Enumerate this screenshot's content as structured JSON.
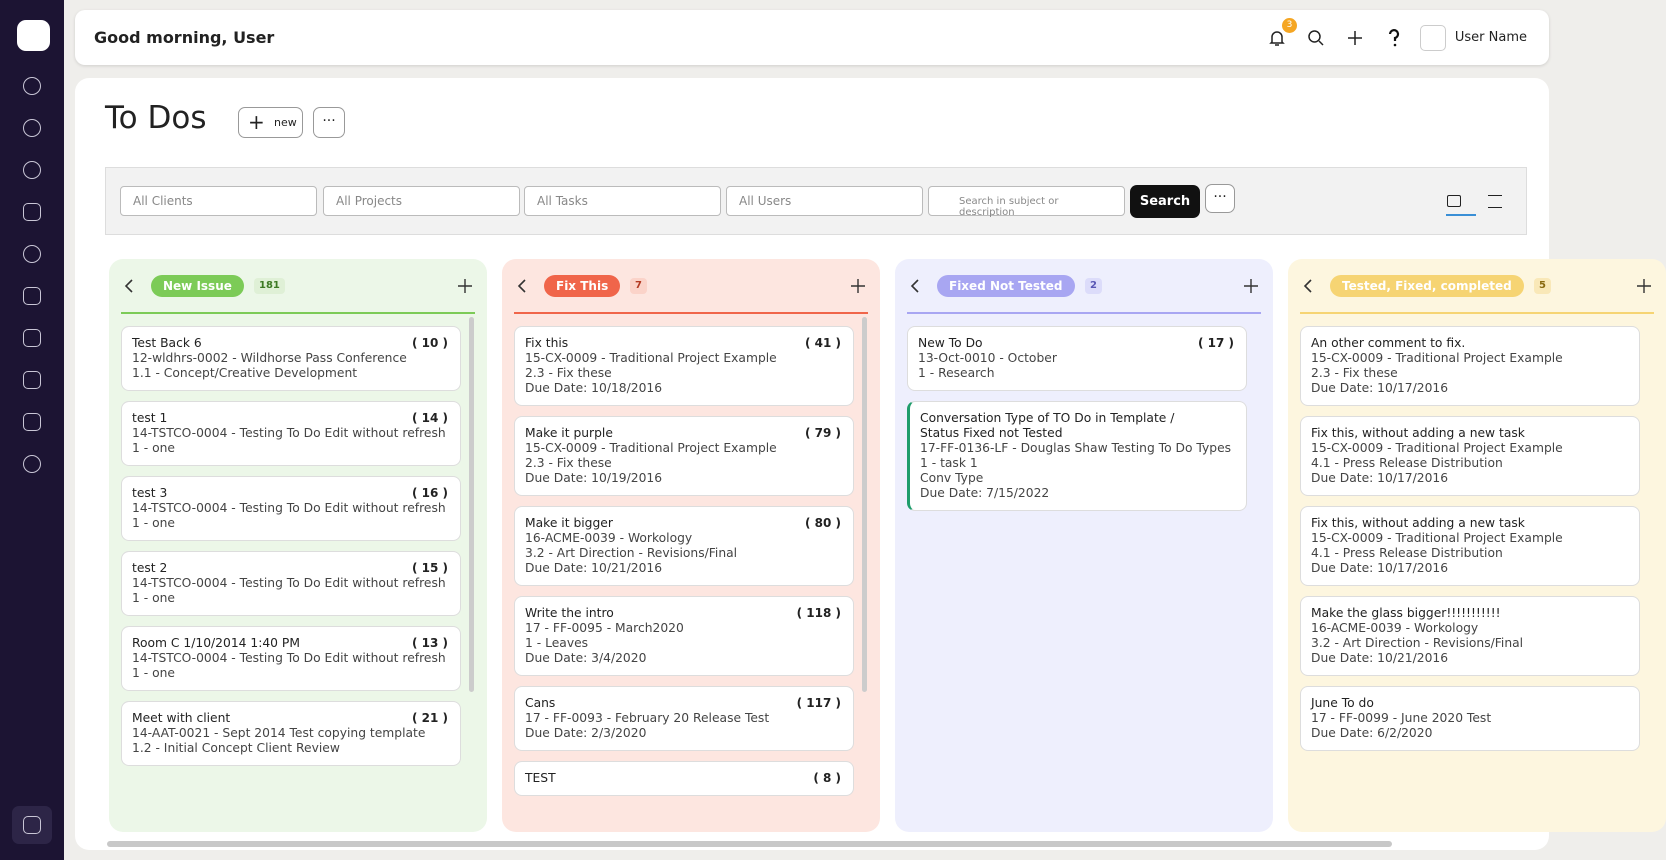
{
  "header": {
    "greeting": "Good morning, User",
    "notifications": "3",
    "user_name": "User Name"
  },
  "page": {
    "title": "To Dos",
    "new_button": "new"
  },
  "filters": {
    "clients": "All Clients",
    "projects": "All Projects",
    "tasks": "All Tasks",
    "users": "All Users",
    "search_placeholder": "Search in subject or description",
    "search_button": "Search"
  },
  "columns": [
    {
      "name": "New Issue",
      "count": "181",
      "cards": [
        {
          "title": "Test Back 6",
          "id": "( 10 )",
          "lines": [
            "12-wldhrs-0002 - Wildhorse Pass Conference",
            "1.1 - Concept/Creative Development"
          ]
        },
        {
          "title": "test 1",
          "id": "( 14 )",
          "lines": [
            "14-TSTCO-0004 - Testing To Do Edit without refresh",
            "1 - one"
          ]
        },
        {
          "title": "test 3",
          "id": "( 16 )",
          "lines": [
            "14-TSTCO-0004 - Testing To Do Edit without refresh",
            "1 - one"
          ]
        },
        {
          "title": "test 2",
          "id": "( 15 )",
          "lines": [
            "14-TSTCO-0004 - Testing To Do Edit without refresh",
            "1 - one"
          ]
        },
        {
          "title": "Room C 1/10/2014 1:40 PM",
          "id": "( 13 )",
          "lines": [
            "14-TSTCO-0004 - Testing To Do Edit without refresh",
            "1 - one"
          ]
        },
        {
          "title": "Meet with client",
          "id": "( 21 )",
          "lines": [
            "14-AAT-0021 - Sept 2014 Test copying template",
            "1.2 - Initial Concept Client Review"
          ]
        }
      ]
    },
    {
      "name": "Fix This",
      "count": "7",
      "cards": [
        {
          "title": "Fix this",
          "id": "( 41 )",
          "lines": [
            "15-CX-0009 - Traditional Project Example",
            "2.3 - Fix these",
            "Due Date: 10/18/2016"
          ]
        },
        {
          "title": "Make it purple",
          "id": "( 79 )",
          "lines": [
            "15-CX-0009 - Traditional Project Example",
            "2.3 - Fix these",
            "Due Date: 10/19/2016"
          ]
        },
        {
          "title": "Make it bigger",
          "id": "( 80 )",
          "lines": [
            "16-ACME-0039 - Workology",
            "3.2 - Art Direction - Revisions/Final",
            "Due Date: 10/21/2016"
          ]
        },
        {
          "title": "Write the intro",
          "id": "( 118 )",
          "lines": [
            "17 - FF-0095 - March2020",
            "1 - Leaves",
            "Due Date: 3/4/2020"
          ]
        },
        {
          "title": "Cans",
          "id": "( 117 )",
          "lines": [
            "17 - FF-0093 - February 20 Release Test",
            "Due Date: 2/3/2020"
          ]
        },
        {
          "title": "TEST",
          "id": "( 8 )",
          "lines": []
        }
      ]
    },
    {
      "name": "Fixed Not Tested",
      "count": "2",
      "cards": [
        {
          "title": "New To Do",
          "id": "( 17 )",
          "lines": [
            "13-Oct-0010 - October",
            "1 - Research"
          ]
        },
        {
          "title": "Conversation Type of TO Do in Template / Status Fixed not Tested",
          "id": "",
          "lines": [
            "17-FF-0136-LF - Douglas Shaw Testing To Do Types",
            "1 - task 1",
            "Conv Type",
            "Due Date: 7/15/2022"
          ]
        }
      ]
    },
    {
      "name": "Tested, Fixed, completed",
      "count": "5",
      "cards": [
        {
          "title": "An other comment to fix.",
          "id": "",
          "lines": [
            "15-CX-0009 - Traditional Project Example",
            "2.3 - Fix these",
            "Due Date: 10/17/2016"
          ]
        },
        {
          "title": "Fix this, without adding a new task",
          "id": "",
          "lines": [
            "15-CX-0009 - Traditional Project Example",
            "4.1 - Press Release Distribution",
            "Due Date: 10/17/2016"
          ]
        },
        {
          "title": "Fix this, without adding a new task",
          "id": "",
          "lines": [
            "15-CX-0009 - Traditional Project Example",
            "4.1 - Press Release Distribution",
            "Due Date: 10/17/2016"
          ]
        },
        {
          "title": "Make the glass bigger!!!!!!!!!!!",
          "id": "",
          "lines": [
            "16-ACME-0039 - Workology",
            "3.2 - Art Direction - Revisions/Final",
            "Due Date: 10/21/2016"
          ]
        },
        {
          "title": "June To do",
          "id": "",
          "lines": [
            "17 - FF-0099 - June 2020 Test",
            "Due Date: 6/2/2020"
          ]
        }
      ]
    }
  ]
}
